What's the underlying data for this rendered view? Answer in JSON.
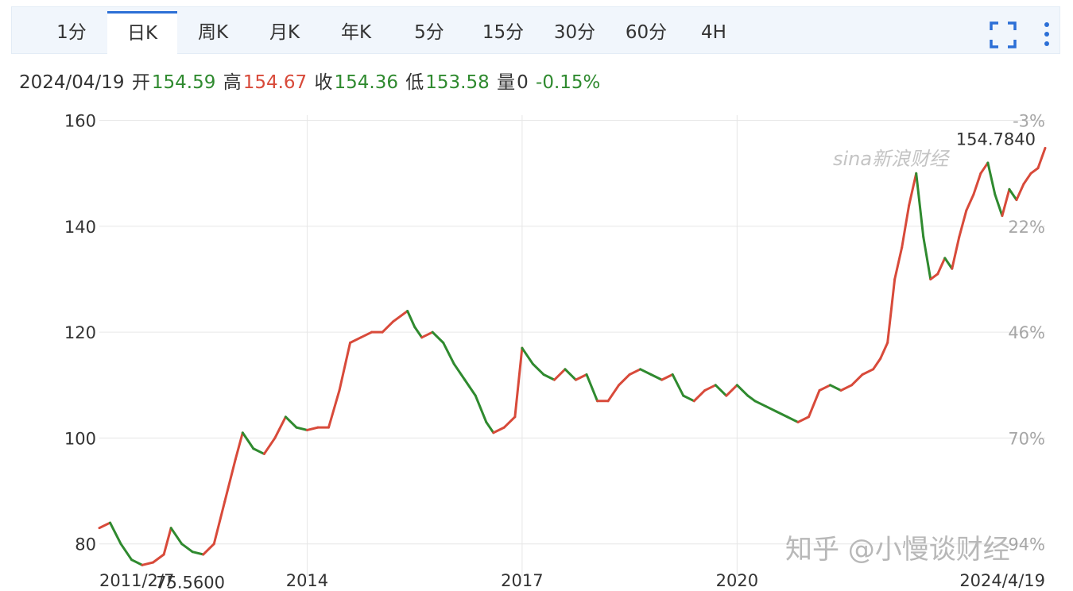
{
  "tabs": [
    {
      "label": "1分",
      "active": false
    },
    {
      "label": "日K",
      "active": true
    },
    {
      "label": "周K",
      "active": false
    },
    {
      "label": "月K",
      "active": false
    },
    {
      "label": "年K",
      "active": false
    },
    {
      "label": "5分",
      "active": false
    },
    {
      "label": "15分",
      "active": false
    },
    {
      "label": "30分",
      "active": false
    },
    {
      "label": "60分",
      "active": false
    },
    {
      "label": "4H",
      "active": false
    }
  ],
  "toolbar": {
    "expand_icon": "expand-icon",
    "more_icon": "more-vertical-icon"
  },
  "info": {
    "date": "2024/04/19",
    "open_label": "开",
    "open": "154.59",
    "high_label": "高",
    "high": "154.67",
    "close_label": "收",
    "close": "154.36",
    "low_label": "低",
    "low": "153.58",
    "volume_label": "量",
    "volume": "0",
    "change": "-0.15%"
  },
  "colors": {
    "up": "#d84a3a",
    "down": "#2f8a2f",
    "accent": "#2c6fd6",
    "grid": "#e6e6e6"
  },
  "watermark": {
    "sina": "sina新浪财经",
    "zhihu": "知乎 @小慢谈财经"
  },
  "chart_data": {
    "type": "line",
    "title": "",
    "xlabel": "",
    "ylabel": "",
    "ylim": [
      73.5,
      161
    ],
    "y_ticks": [
      80,
      100,
      120,
      140,
      160
    ],
    "pct_ticks": [
      "94%",
      "70%",
      "46%",
      "22%",
      "-3%"
    ],
    "x_tick_labels": [
      "2011/2/7",
      "2014",
      "2017",
      "2020",
      "2024/4/19"
    ],
    "x_tick_values": [
      2011.1,
      2014,
      2017,
      2020,
      2024.3
    ],
    "xlim": [
      2011.1,
      2024.3
    ],
    "max_label": "154.7840",
    "min_label": "75.5600",
    "min_point": {
      "x": 2011.8,
      "y": 75.56
    },
    "max_point": {
      "x": 2024.3,
      "y": 154.784
    },
    "series": [
      {
        "x": [
          2011.1,
          2011.25,
          2011.4,
          2011.55,
          2011.7,
          2011.85,
          2012.0,
          2012.1,
          2012.25,
          2012.4,
          2012.55,
          2012.7,
          2012.85,
          2013.0,
          2013.1,
          2013.25,
          2013.4,
          2013.55,
          2013.7,
          2013.85,
          2014.0,
          2014.15,
          2014.3,
          2014.45,
          2014.6,
          2014.75,
          2014.9,
          2015.05,
          2015.2,
          2015.4,
          2015.5,
          2015.6,
          2015.75,
          2015.9,
          2016.05,
          2016.2,
          2016.35,
          2016.5,
          2016.6,
          2016.75,
          2016.9,
          2017.0,
          2017.15,
          2017.3,
          2017.45,
          2017.6,
          2017.75,
          2017.9,
          2018.05,
          2018.2,
          2018.35,
          2018.5,
          2018.65,
          2018.8,
          2018.95,
          2019.1,
          2019.25,
          2019.4,
          2019.55,
          2019.7,
          2019.85,
          2020.0,
          2020.15,
          2020.25,
          2020.4,
          2020.55,
          2020.7,
          2020.85,
          2021.0,
          2021.15,
          2021.3,
          2021.45,
          2021.6,
          2021.75,
          2021.9,
          2022.0,
          2022.1,
          2022.2,
          2022.3,
          2022.4,
          2022.5,
          2022.6,
          2022.7,
          2022.8,
          2022.9,
          2023.0,
          2023.1,
          2023.2,
          2023.3,
          2023.4,
          2023.5,
          2023.6,
          2023.7,
          2023.8,
          2023.9,
          2024.0,
          2024.1,
          2024.2,
          2024.3
        ],
        "y": [
          83,
          84,
          80,
          77,
          76,
          76.5,
          78,
          83,
          80,
          78.5,
          78,
          80,
          88,
          96,
          101,
          98,
          97,
          100,
          104,
          102,
          101.5,
          102,
          102,
          109,
          118,
          119,
          120,
          120,
          122,
          124,
          121,
          119,
          120,
          118,
          114,
          111,
          108,
          103,
          101,
          102,
          104,
          117,
          114,
          112,
          111,
          113,
          111,
          112,
          107,
          107,
          110,
          112,
          113,
          112,
          111,
          112,
          108,
          107,
          109,
          110,
          108,
          110,
          108,
          107,
          106,
          105,
          104,
          103,
          104,
          109,
          110,
          109,
          110,
          112,
          113,
          115,
          118,
          130,
          136,
          144,
          150,
          138,
          130,
          131,
          134,
          132,
          138,
          143,
          146,
          150,
          152,
          146,
          142,
          147,
          145,
          148,
          150,
          151,
          154.784
        ]
      }
    ]
  }
}
